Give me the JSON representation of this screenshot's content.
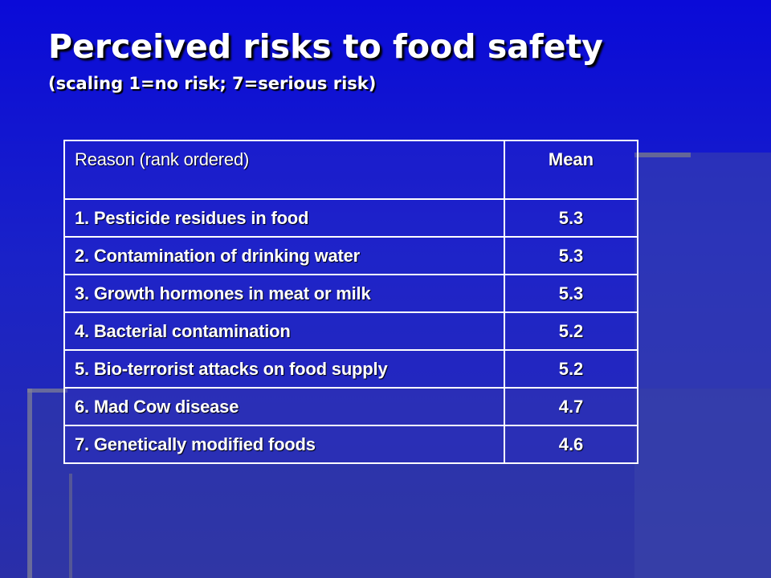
{
  "slide": {
    "title": "Perceived risks to food safety",
    "subtitle": "(scaling 1=no risk; 7=serious risk)"
  },
  "table": {
    "headers": {
      "reason": "Reason (rank ordered)",
      "mean": "Mean"
    },
    "rows": [
      {
        "reason": "1.  Pesticide residues in food",
        "mean": "5.3"
      },
      {
        "reason": "2.  Contamination of drinking water",
        "mean": "5.3"
      },
      {
        "reason": "3.  Growth hormones in meat or milk",
        "mean": "5.3"
      },
      {
        "reason": "4.  Bacterial contamination",
        "mean": "5.2"
      },
      {
        "reason": "5.  Bio-terrorist attacks on food supply",
        "mean": "5.2"
      },
      {
        "reason": "6.  Mad Cow disease",
        "mean": "4.7"
      },
      {
        "reason": "7.  Genetically modified foods",
        "mean": "4.6"
      }
    ]
  },
  "colors": {
    "background": "#0a0ad8",
    "text": "#ffffff",
    "table_border": "#ffffff"
  }
}
